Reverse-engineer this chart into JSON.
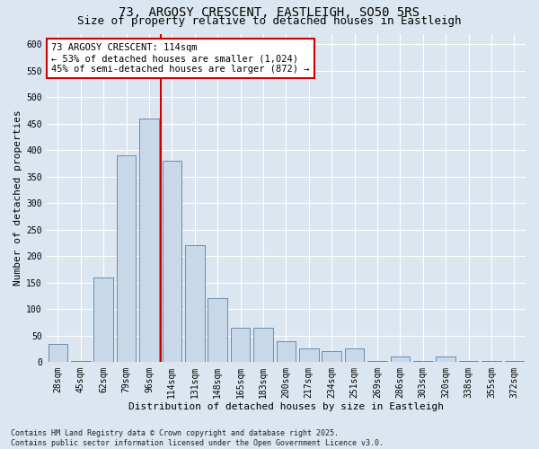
{
  "title": "73, ARGOSY CRESCENT, EASTLEIGH, SO50 5RS",
  "subtitle": "Size of property relative to detached houses in Eastleigh",
  "xlabel": "Distribution of detached houses by size in Eastleigh",
  "ylabel": "Number of detached properties",
  "categories": [
    "28sqm",
    "45sqm",
    "62sqm",
    "79sqm",
    "96sqm",
    "114sqm",
    "131sqm",
    "148sqm",
    "165sqm",
    "183sqm",
    "200sqm",
    "217sqm",
    "234sqm",
    "251sqm",
    "269sqm",
    "286sqm",
    "303sqm",
    "320sqm",
    "338sqm",
    "355sqm",
    "372sqm"
  ],
  "values": [
    35,
    2,
    160,
    390,
    460,
    380,
    220,
    120,
    65,
    65,
    40,
    25,
    20,
    25,
    2,
    10,
    2,
    10,
    2,
    2,
    2
  ],
  "bar_color": "#c8d8e8",
  "bar_edge_color": "#5580aa",
  "vline_color": "#cc0000",
  "vline_x": 4.5,
  "annotation_text": "73 ARGOSY CRESCENT: 114sqm\n← 53% of detached houses are smaller (1,024)\n45% of semi-detached houses are larger (872) →",
  "annotation_box_color": "#ffffff",
  "annotation_box_edge": "#cc0000",
  "ylim": [
    0,
    620
  ],
  "yticks": [
    0,
    50,
    100,
    150,
    200,
    250,
    300,
    350,
    400,
    450,
    500,
    550,
    600
  ],
  "bg_color": "#dce6f0",
  "plot_bg_color": "#dce6f0",
  "footer": "Contains HM Land Registry data © Crown copyright and database right 2025.\nContains public sector information licensed under the Open Government Licence v3.0.",
  "title_fontsize": 10,
  "subtitle_fontsize": 9,
  "axis_label_fontsize": 8,
  "tick_fontsize": 7,
  "footer_fontsize": 6,
  "annot_fontsize": 7.5
}
